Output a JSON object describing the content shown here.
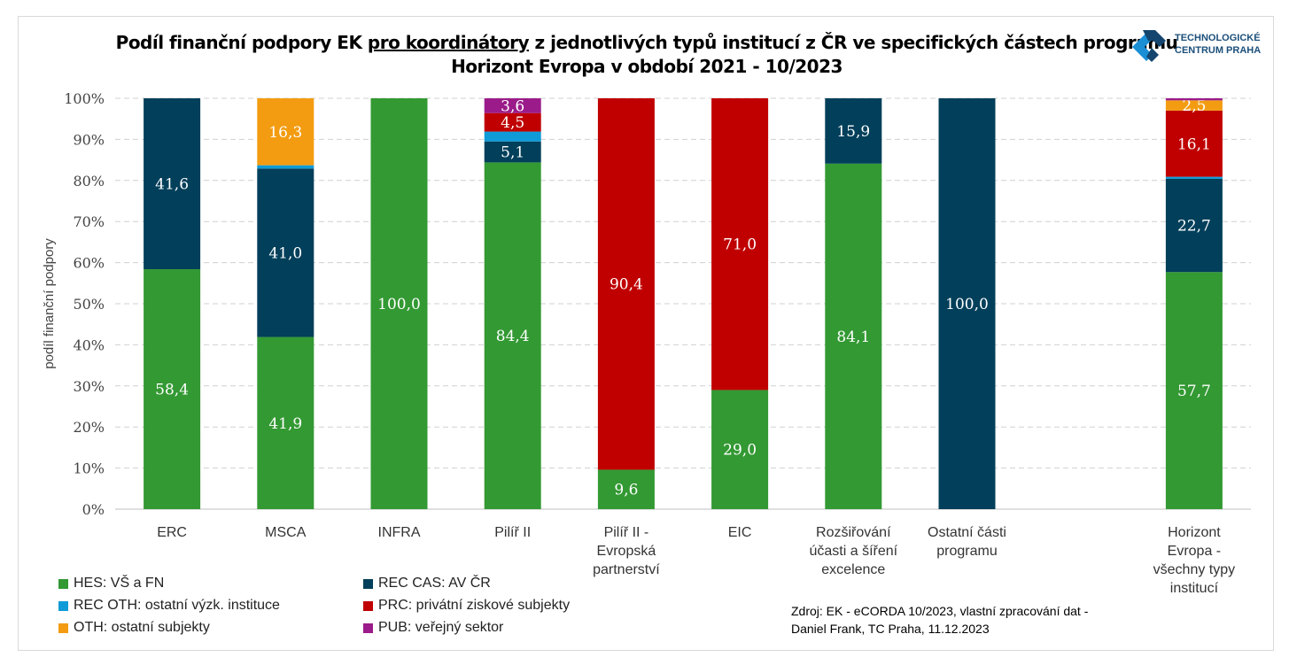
{
  "title": {
    "line1_pre": "Podíl finanční podpory EK ",
    "line1_underlined": "pro koordinátory",
    "line1_post": " z jednotlivých typů institucí z ČR ve specifických částech programu",
    "line2": "Horizont Evropa v období 2021 - 10/2023"
  },
  "logo": {
    "line1": "TECHNOLOGICKÉ",
    "line2": "CENTRUM PRAHA"
  },
  "source": {
    "line1": "Zdroj: EK - eCORDA 10/2023, vlastní zpracování dat -",
    "line2": "Daniel Frank, TC Praha, 11.12.2023"
  },
  "chart_data": {
    "type": "bar",
    "stacked": true,
    "ylabel": "podíl finanční podpory",
    "ylim": [
      0,
      100
    ],
    "yticks": [
      "0%",
      "10%",
      "20%",
      "30%",
      "40%",
      "50%",
      "60%",
      "70%",
      "80%",
      "90%",
      "100%"
    ],
    "grid": true,
    "legend_position": "bottom-left",
    "categories": [
      [
        "ERC"
      ],
      [
        "MSCA"
      ],
      [
        "INFRA"
      ],
      [
        "Pilíř II"
      ],
      [
        "Pilíř II -",
        "Evropská",
        "partnerství"
      ],
      [
        "EIC"
      ],
      [
        "Rozšiřování",
        "účasti a šíření",
        "excelence"
      ],
      [
        "Ostatní části",
        "programu"
      ],
      [],
      [
        "Horizont",
        "Evropa -",
        "všechny typy",
        "institucí"
      ]
    ],
    "series": [
      {
        "name": "HES: VŠ a FN",
        "color": "#339933",
        "values": [
          58.4,
          41.9,
          100.0,
          84.4,
          9.6,
          29.0,
          84.1,
          0,
          0,
          57.7
        ],
        "labels": [
          true,
          true,
          true,
          true,
          true,
          true,
          true,
          false,
          false,
          true
        ]
      },
      {
        "name": "REC CAS: AV ČR",
        "color": "#013f5a",
        "values": [
          41.6,
          41.0,
          0,
          5.1,
          0,
          0,
          15.9,
          100.0,
          0,
          22.7
        ],
        "labels": [
          true,
          true,
          false,
          true,
          false,
          false,
          true,
          true,
          false,
          true
        ]
      },
      {
        "name": "REC OTH: ostatní výzk. instituce",
        "color": "#0f9bd7",
        "values": [
          0,
          0.8,
          0,
          2.4,
          0,
          0,
          0,
          0,
          0,
          0.5
        ],
        "labels": [
          false,
          false,
          false,
          false,
          false,
          false,
          false,
          false,
          false,
          false
        ]
      },
      {
        "name": "PRC: privátní ziskové subjekty",
        "color": "#c00000",
        "values": [
          0,
          0,
          0,
          4.5,
          90.4,
          71.0,
          0,
          0,
          0,
          16.1
        ],
        "labels": [
          false,
          false,
          false,
          true,
          true,
          true,
          false,
          false,
          false,
          true
        ]
      },
      {
        "name": "OTH: ostatní subjekty",
        "color": "#f39c12",
        "values": [
          0,
          16.3,
          0,
          0,
          0,
          0,
          0,
          0,
          0,
          2.5
        ],
        "labels": [
          false,
          true,
          false,
          false,
          false,
          false,
          false,
          false,
          false,
          true
        ]
      },
      {
        "name": "PUB: veřejný sektor",
        "color": "#9b1b8a",
        "values": [
          0,
          0,
          0,
          3.6,
          0,
          0,
          0,
          0,
          0,
          0.5
        ],
        "labels": [
          false,
          false,
          false,
          true,
          false,
          false,
          false,
          false,
          false,
          false
        ]
      }
    ]
  }
}
